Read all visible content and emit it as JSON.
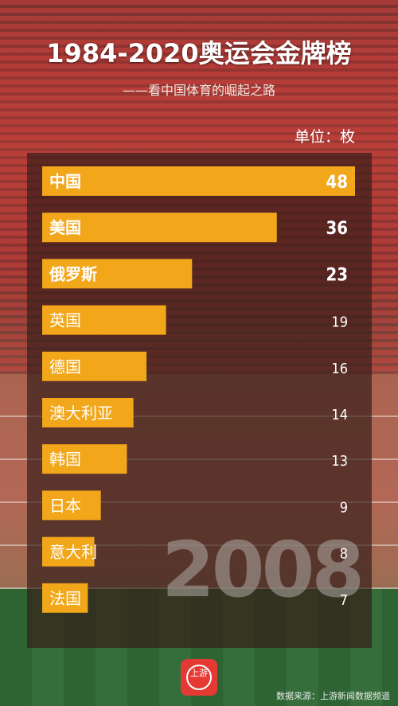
{
  "title": "1984-2020奥运会金牌榜",
  "subtitle": "——看中国体育的崛起之路",
  "unit": "单位：枚",
  "year": "2008",
  "source": "数据来源：上游新闻数据频道",
  "logo_text": "上游",
  "colors": {
    "bar": "#f2a71b",
    "panel": "#341c18",
    "logo": "#e53a33"
  },
  "chart_data": {
    "type": "bar",
    "orientation": "horizontal",
    "categories": [
      "中国",
      "美国",
      "俄罗斯",
      "英国",
      "德国",
      "澳大利亚",
      "韩国",
      "日本",
      "意大利",
      "法国"
    ],
    "values": [
      48,
      36,
      23,
      19,
      16,
      14,
      13,
      9,
      8,
      7
    ],
    "title": "1984-2020奥运会金牌榜",
    "subtitle": "——看中国体育的崛起之路",
    "unit": "单位：枚",
    "highlighted_top": 3,
    "xlim": [
      0,
      48
    ]
  }
}
